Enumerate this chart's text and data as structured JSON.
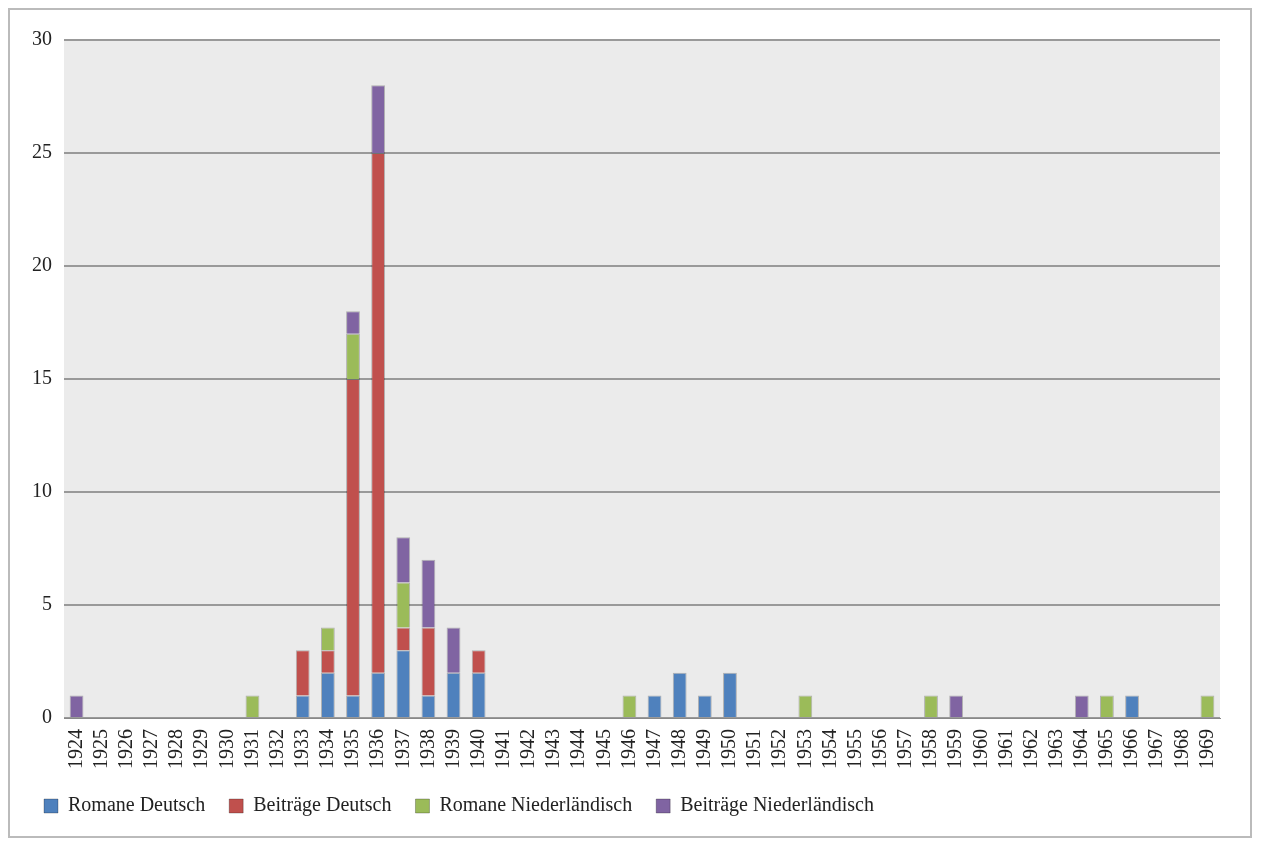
{
  "chart_data": {
    "type": "bar",
    "stacked": true,
    "categories": [
      "1924",
      "1925",
      "1926",
      "1927",
      "1928",
      "1929",
      "1930",
      "1931",
      "1932",
      "1933",
      "1934",
      "1935",
      "1936",
      "1937",
      "1938",
      "1939",
      "1940",
      "1941",
      "1942",
      "1943",
      "1944",
      "1945",
      "1946",
      "1947",
      "1948",
      "1949",
      "1950",
      "1951",
      "1952",
      "1953",
      "1954",
      "1955",
      "1956",
      "1957",
      "1958",
      "1959",
      "1960",
      "1961",
      "1962",
      "1963",
      "1964",
      "1965",
      "1966",
      "1967",
      "1968",
      "1969"
    ],
    "series": [
      {
        "name": "Romane Deutsch",
        "color": "#4f81bd",
        "values": [
          0,
          0,
          0,
          0,
          0,
          0,
          0,
          0,
          0,
          1,
          2,
          1,
          2,
          3,
          1,
          2,
          2,
          0,
          0,
          0,
          0,
          0,
          0,
          1,
          2,
          1,
          2,
          0,
          0,
          0,
          0,
          0,
          0,
          0,
          0,
          0,
          0,
          0,
          0,
          0,
          0,
          0,
          1,
          0,
          0,
          0
        ]
      },
      {
        "name": "Beiträge Deutsch",
        "color": "#c0504d",
        "values": [
          0,
          0,
          0,
          0,
          0,
          0,
          0,
          0,
          0,
          2,
          1,
          14,
          23,
          1,
          3,
          0,
          1,
          0,
          0,
          0,
          0,
          0,
          0,
          0,
          0,
          0,
          0,
          0,
          0,
          0,
          0,
          0,
          0,
          0,
          0,
          0,
          0,
          0,
          0,
          0,
          0,
          0,
          0,
          0,
          0,
          0
        ]
      },
      {
        "name": "Romane Niederländisch",
        "color": "#9bbb59",
        "values": [
          0,
          0,
          0,
          0,
          0,
          0,
          0,
          1,
          0,
          0,
          1,
          2,
          0,
          2,
          0,
          0,
          0,
          0,
          0,
          0,
          0,
          0,
          1,
          0,
          0,
          0,
          0,
          0,
          0,
          1,
          0,
          0,
          0,
          0,
          1,
          0,
          0,
          0,
          0,
          0,
          0,
          1,
          0,
          0,
          0,
          1
        ]
      },
      {
        "name": "Beiträge Niederländisch",
        "color": "#8064a2",
        "values": [
          1,
          0,
          0,
          0,
          0,
          0,
          0,
          0,
          0,
          0,
          0,
          1,
          3,
          2,
          3,
          2,
          0,
          0,
          0,
          0,
          0,
          0,
          0,
          0,
          0,
          0,
          0,
          0,
          0,
          0,
          0,
          0,
          0,
          0,
          0,
          1,
          0,
          0,
          0,
          0,
          1,
          0,
          0,
          0,
          0,
          0
        ]
      }
    ],
    "ylim": [
      0,
      30
    ],
    "yticks": [
      0,
      5,
      10,
      15,
      20,
      25,
      30
    ],
    "grid": "y",
    "legend": "bottom"
  }
}
